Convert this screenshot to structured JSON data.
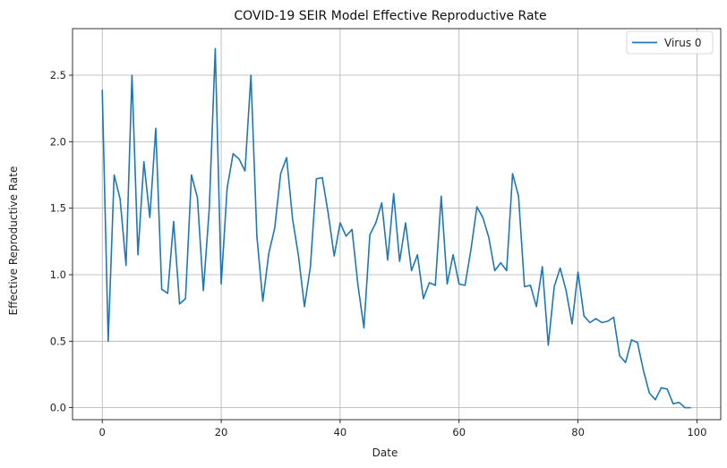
{
  "chart_data": {
    "type": "line",
    "title": "COVID-19 SEIR Model Effective Reproductive Rate",
    "xlabel": "Date",
    "ylabel": "Effective Reproductive Rate",
    "xlim": [
      -5,
      104
    ],
    "ylim": [
      -0.09,
      2.85
    ],
    "xticks": [
      0,
      20,
      40,
      60,
      80,
      100
    ],
    "yticks": [
      0.0,
      0.5,
      1.0,
      1.5,
      2.0,
      2.5
    ],
    "xtick_labels": [
      "0",
      "20",
      "40",
      "60",
      "80",
      "100"
    ],
    "ytick_labels": [
      "0.0",
      "0.5",
      "1.0",
      "1.5",
      "2.0",
      "2.5"
    ],
    "grid": true,
    "legend_position": "top-right",
    "line_color": "#1f77b4",
    "series": [
      {
        "name": "Virus 0",
        "x": [
          0,
          1,
          2,
          3,
          4,
          5,
          6,
          7,
          8,
          9,
          10,
          11,
          12,
          13,
          14,
          15,
          16,
          17,
          18,
          19,
          20,
          21,
          22,
          23,
          24,
          25,
          26,
          27,
          28,
          29,
          30,
          31,
          32,
          33,
          34,
          35,
          36,
          37,
          38,
          39,
          40,
          41,
          42,
          43,
          44,
          45,
          46,
          47,
          48,
          49,
          50,
          51,
          52,
          53,
          54,
          55,
          56,
          57,
          58,
          59,
          60,
          61,
          62,
          63,
          64,
          65,
          66,
          67,
          68,
          69,
          70,
          71,
          72,
          73,
          74,
          75,
          76,
          77,
          78,
          79,
          80,
          81,
          82,
          83,
          84,
          85,
          86,
          87,
          88,
          89,
          90,
          91,
          92,
          93,
          94,
          95,
          96,
          97,
          98,
          99
        ],
        "y": [
          2.39,
          0.5,
          1.75,
          1.57,
          1.07,
          2.5,
          1.15,
          1.85,
          1.43,
          2.1,
          0.89,
          0.86,
          1.4,
          0.78,
          0.82,
          1.75,
          1.58,
          0.88,
          1.5,
          2.7,
          0.93,
          1.65,
          1.91,
          1.87,
          1.78,
          2.5,
          1.29,
          0.8,
          1.16,
          1.35,
          1.76,
          1.88,
          1.42,
          1.14,
          0.76,
          1.06,
          1.72,
          1.73,
          1.46,
          1.14,
          1.39,
          1.29,
          1.34,
          0.92,
          0.6,
          1.3,
          1.39,
          1.54,
          1.11,
          1.61,
          1.1,
          1.39,
          1.03,
          1.15,
          0.82,
          0.94,
          0.92,
          1.59,
          0.93,
          1.15,
          0.93,
          0.92,
          1.19,
          1.51,
          1.43,
          1.28,
          1.03,
          1.09,
          1.03,
          1.76,
          1.59,
          0.91,
          0.92,
          0.76,
          1.06,
          0.47,
          0.91,
          1.05,
          0.88,
          0.63,
          1.02,
          0.69,
          0.64,
          0.67,
          0.64,
          0.65,
          0.68,
          0.39,
          0.34,
          0.51,
          0.49,
          0.28,
          0.11,
          0.06,
          0.15,
          0.14,
          0.03,
          0.04,
          0.0,
          0.0
        ]
      }
    ]
  }
}
